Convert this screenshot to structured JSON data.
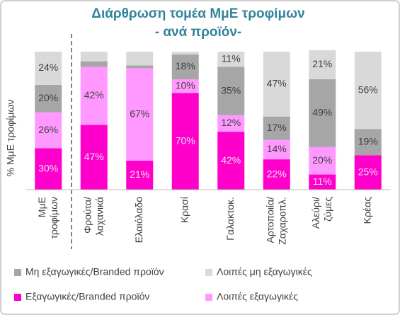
{
  "chart_data": {
    "type": "stacked_bar",
    "title": [
      "Διάρθρωση τομέα ΜμΕ τροφίμων",
      "- ανά προϊόν-"
    ],
    "y_label": "% ΜμΕ τροφίμων",
    "categories": [
      "ΜμΕ τροφίμων",
      "Φρούτα/ λαχανικά",
      "Ελαιόλαδο",
      "Κρασί",
      "Γαλακτοκ.",
      "Αρτοποιία/ Ζαχαροπλ.",
      "Αλεύρι/ ζύμες",
      "Κρέας"
    ],
    "ylim": [
      0,
      100
    ],
    "series": [
      {
        "name": "Εξαγωγικές/Branded προϊόν",
        "color": "#FF00CC",
        "values": [
          30,
          47,
          21,
          70,
          42,
          22,
          11,
          25
        ],
        "value_labels": [
          "30%",
          "47%",
          "21%",
          "70%",
          "42%",
          "22%",
          "11%",
          "25%"
        ]
      },
      {
        "name": "Λοιπές εξαγωγικές",
        "color": "#FF99FF",
        "values": [
          26,
          42,
          67,
          10,
          12,
          14,
          20,
          null
        ],
        "value_labels": [
          "26%",
          "42%",
          "67%",
          "10%",
          "12%",
          "14%",
          "20%",
          null
        ]
      },
      {
        "name": "Μη εξαγωγικές/Branded προϊόν",
        "color": "#A6A6A6",
        "values": [
          20,
          4,
          2,
          18,
          35,
          17,
          49,
          19
        ],
        "value_labels": [
          "20%",
          null,
          null,
          "18%",
          "35%",
          "17%",
          "49%",
          "19%"
        ]
      },
      {
        "name": "Λοιπές μη εξαγωγικές",
        "color": "#D9D9D9",
        "values": [
          24,
          7,
          10,
          2,
          11,
          47,
          21,
          56
        ],
        "value_labels": [
          "24%",
          null,
          null,
          null,
          "11%",
          "47%",
          "21%",
          "56%"
        ]
      }
    ]
  }
}
